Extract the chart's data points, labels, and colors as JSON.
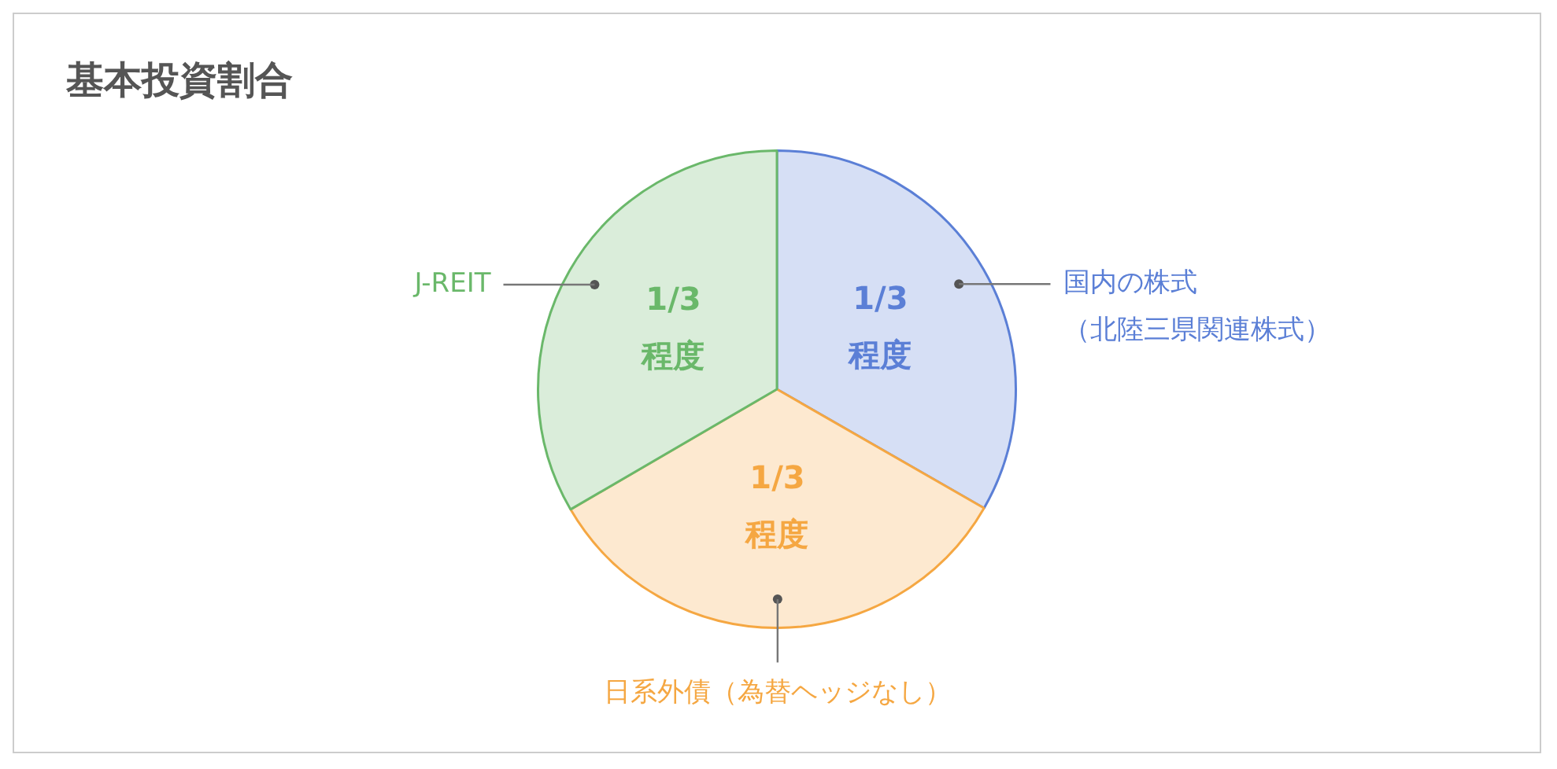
{
  "chart_data": {
    "type": "pie",
    "title": "基本投資割合",
    "categories": [
      "国内の株式（北陸三県関連株式）",
      "日系外債（為替ヘッジなし）",
      "J-REIT"
    ],
    "values": [
      33.3,
      33.3,
      33.4
    ],
    "value_labels": [
      "1/3 程度",
      "1/3 程度",
      "1/3 程度"
    ],
    "colors": [
      "#5b7fd6",
      "#f5a742",
      "#6ab86a"
    ],
    "legend": false
  }
}
